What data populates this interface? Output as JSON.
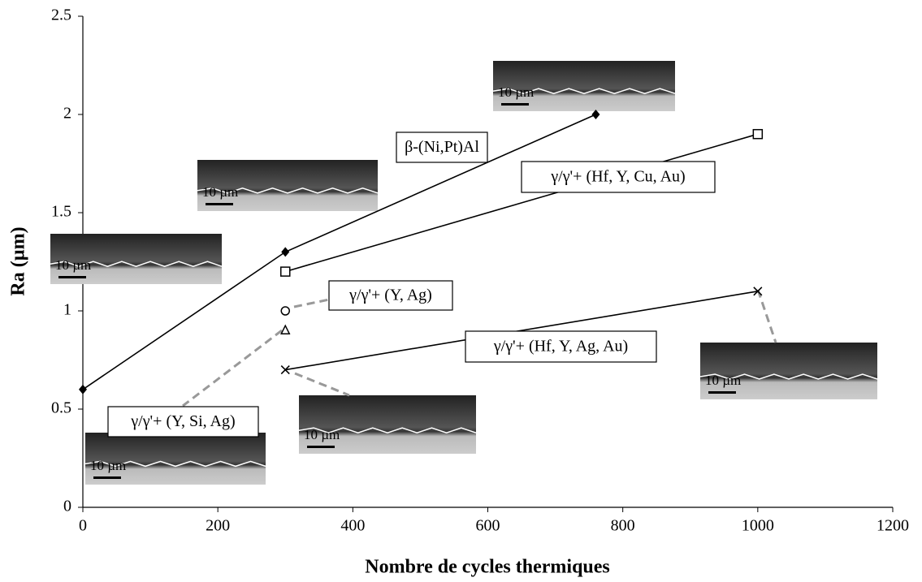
{
  "chart_data": {
    "type": "line",
    "x_label": "Nombre de cycles thermiques",
    "y_label": "Ra (µm)",
    "xlim": [
      0,
      1200
    ],
    "xticks": [
      0,
      200,
      400,
      600,
      800,
      1000,
      1200
    ],
    "ylim": [
      0,
      2.5
    ],
    "yticks": [
      0,
      0.5,
      1,
      1.5,
      2,
      2.5
    ],
    "series": [
      {
        "name": "β-(Ni,Pt)Al",
        "color": "#000000",
        "marker": "diamond",
        "x": [
          0,
          300,
          760
        ],
        "values": [
          0.6,
          1.3,
          2.0
        ]
      },
      {
        "name": "γ/γ'+ (Hf, Y, Cu, Au)",
        "color": "#000000",
        "marker": "square",
        "x": [
          300,
          1000
        ],
        "values": [
          1.2,
          1.9
        ]
      },
      {
        "name": "γ/γ'+ (Y, Ag)",
        "color": "#000000",
        "marker": "circle",
        "x": [
          300
        ],
        "values": [
          1.0
        ]
      },
      {
        "name": "γ/γ'+ (Y, Si, Ag)",
        "color": "#000000",
        "marker": "triangle",
        "x": [
          300
        ],
        "values": [
          0.9
        ]
      },
      {
        "name": "γ/γ'+ (Hf, Y, Ag, Au)",
        "color": "#000000",
        "marker": "x",
        "x": [
          300,
          1000
        ],
        "values": [
          0.7,
          1.1
        ]
      }
    ],
    "scale_labels": [
      "10 µm",
      "10 µm",
      "10 µm",
      "10 µm",
      "10 µm",
      "10 µm"
    ]
  }
}
